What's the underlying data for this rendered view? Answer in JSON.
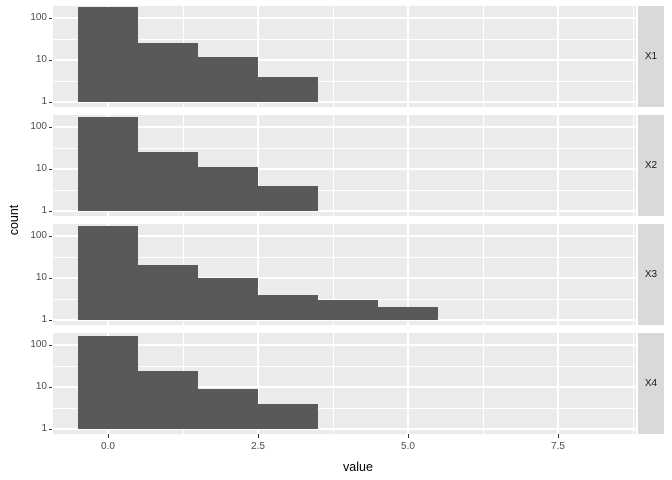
{
  "chart_data": {
    "type": "bar",
    "subtype": "faceted-histogram",
    "title": "",
    "xlabel": "value",
    "ylabel": "count",
    "x_ticks": [
      0,
      2.5,
      5,
      7.5
    ],
    "x_tick_labels": [
      "0.0",
      "2.5",
      "5.0",
      "7.5"
    ],
    "y_ticks": [
      100,
      10,
      1
    ],
    "y_tick_labels": [
      "100",
      "10",
      "1"
    ],
    "y_scale": "log10",
    "ylim": [
      1,
      220
    ],
    "xlim": [
      -0.9,
      8.8
    ],
    "grid": "major-and-minor",
    "legend": "none",
    "bin_width": 1,
    "facets": [
      {
        "label": "X1",
        "bin_centers": [
          0,
          1,
          2,
          3
        ],
        "counts": [
          180,
          25,
          12,
          4
        ]
      },
      {
        "label": "X2",
        "bin_centers": [
          0,
          1,
          2,
          3
        ],
        "counts": [
          170,
          25,
          11,
          4
        ]
      },
      {
        "label": "X3",
        "bin_centers": [
          0,
          1,
          2,
          3,
          4,
          5
        ],
        "counts": [
          175,
          20,
          10,
          4,
          3,
          2
        ]
      },
      {
        "label": "X4",
        "bin_centers": [
          0,
          1,
          2,
          3
        ],
        "counts": [
          160,
          24,
          9,
          4
        ]
      }
    ],
    "colors": {
      "bar": "#595959",
      "panel_bg": "#ebebeb",
      "strip_bg": "#d9d9d9",
      "gridline": "#ffffff",
      "tick_label": "#4d4d4d",
      "strip_text": "#1a1a1a",
      "axis_title": "#000000"
    }
  }
}
